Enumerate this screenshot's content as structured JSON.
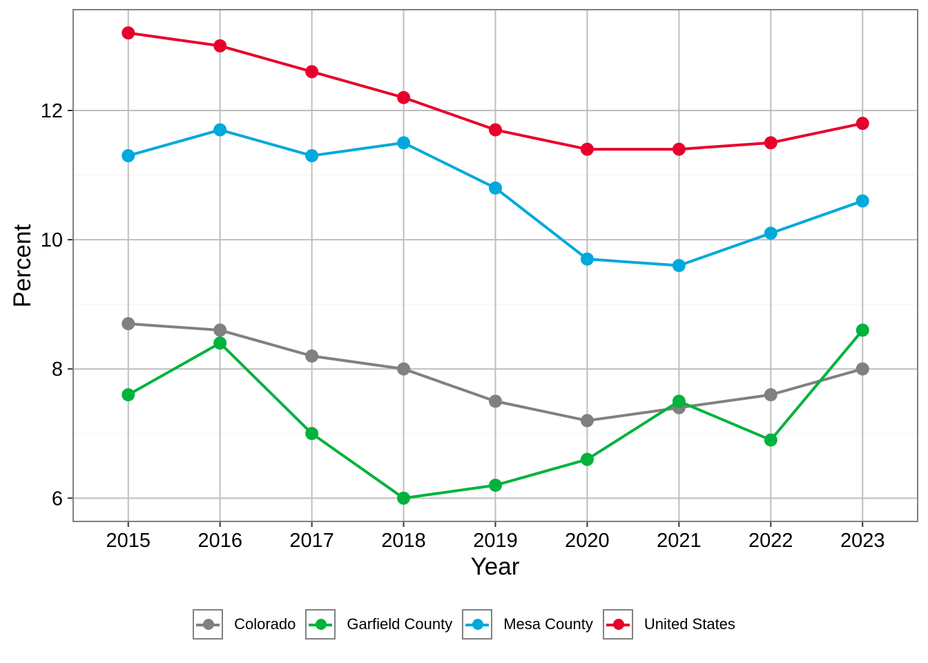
{
  "chart_data": {
    "type": "line",
    "title": "",
    "xlabel": "Year",
    "ylabel": "Percent",
    "x": [
      2015,
      2016,
      2017,
      2018,
      2019,
      2020,
      2021,
      2022,
      2023
    ],
    "x_tick_labels": [
      "2015",
      "2016",
      "2017",
      "2018",
      "2019",
      "2020",
      "2021",
      "2022",
      "2023"
    ],
    "y_ticks": [
      6,
      8,
      10,
      12
    ],
    "y_tick_labels": [
      "6",
      "8",
      "10",
      "12"
    ],
    "xlim": [
      2014.4,
      2023.6
    ],
    "ylim": [
      5.64,
      13.56
    ],
    "grid": true,
    "legend_position": "bottom",
    "series": [
      {
        "name": "Colorado",
        "color": "#808080",
        "values": [
          8.7,
          8.6,
          8.2,
          8.0,
          7.5,
          7.2,
          7.4,
          7.6,
          8.0
        ]
      },
      {
        "name": "Garfield County",
        "color": "#00B33C",
        "values": [
          7.6,
          8.4,
          7.0,
          6.0,
          6.2,
          6.6,
          7.5,
          6.9,
          8.6
        ]
      },
      {
        "name": "Mesa County",
        "color": "#00A9DB",
        "values": [
          11.3,
          11.7,
          11.3,
          11.5,
          10.8,
          9.7,
          9.6,
          10.1,
          10.6
        ]
      },
      {
        "name": "United States",
        "color": "#E8002D",
        "values": [
          13.2,
          13.0,
          12.6,
          12.2,
          11.7,
          11.4,
          11.4,
          11.5,
          11.8
        ]
      }
    ]
  }
}
